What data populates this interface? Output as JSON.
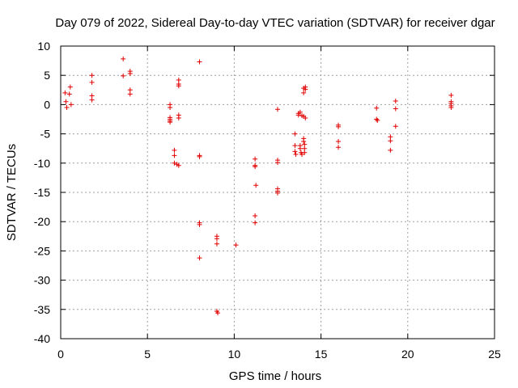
{
  "chart_data": {
    "type": "scatter",
    "title": "Day 079 of 2022, Sidereal Day-to-day VTEC variation (SDTVAR) for receiver dgar",
    "xlabel": "GPS time / hours",
    "ylabel": "SDTVAR / TECUs",
    "xlim": [
      0,
      25
    ],
    "ylim": [
      -40,
      10
    ],
    "xticks": [
      0,
      5,
      10,
      15,
      20,
      25
    ],
    "yticks": [
      10,
      5,
      0,
      -5,
      -10,
      -15,
      -20,
      -25,
      -30,
      -35,
      -40
    ],
    "grid": true,
    "marker": "plus",
    "series": [
      {
        "name": "SDTVAR",
        "color": "#e00000",
        "points": [
          [
            0.25,
            2.0
          ],
          [
            0.3,
            0.5
          ],
          [
            0.35,
            -0.5
          ],
          [
            0.5,
            1.8
          ],
          [
            0.55,
            3.0
          ],
          [
            0.6,
            0.0
          ],
          [
            1.8,
            5.0
          ],
          [
            1.8,
            3.8
          ],
          [
            1.8,
            1.5
          ],
          [
            1.8,
            0.8
          ],
          [
            3.6,
            7.8
          ],
          [
            3.6,
            4.9
          ],
          [
            4.0,
            5.7
          ],
          [
            4.0,
            5.3
          ],
          [
            4.0,
            2.5
          ],
          [
            4.0,
            1.8
          ],
          [
            6.3,
            0.0
          ],
          [
            6.3,
            -0.5
          ],
          [
            6.3,
            -2.2
          ],
          [
            6.3,
            -2.5
          ],
          [
            6.3,
            -2.8
          ],
          [
            6.3,
            -3.0
          ],
          [
            6.55,
            -7.8
          ],
          [
            6.55,
            -8.7
          ],
          [
            6.55,
            -10.0
          ],
          [
            6.7,
            -10.2
          ],
          [
            6.8,
            -10.4
          ],
          [
            6.8,
            4.2
          ],
          [
            6.8,
            3.5
          ],
          [
            6.8,
            3.2
          ],
          [
            6.8,
            -1.8
          ],
          [
            6.8,
            -2.3
          ],
          [
            8.0,
            7.3
          ],
          [
            8.0,
            -8.7
          ],
          [
            8.0,
            -8.9
          ],
          [
            8.0,
            -20.2
          ],
          [
            8.0,
            -20.5
          ],
          [
            8.0,
            -26.2
          ],
          [
            9.0,
            -22.5
          ],
          [
            9.0,
            -22.9
          ],
          [
            9.0,
            -23.8
          ],
          [
            9.0,
            -35.3
          ],
          [
            9.05,
            -35.6
          ],
          [
            10.1,
            -24.0
          ],
          [
            11.2,
            -9.3
          ],
          [
            11.2,
            -10.4
          ],
          [
            11.2,
            -10.6
          ],
          [
            11.25,
            -13.8
          ],
          [
            11.2,
            -19.0
          ],
          [
            11.2,
            -20.2
          ],
          [
            12.5,
            -0.8
          ],
          [
            12.5,
            -9.5
          ],
          [
            12.5,
            -9.9
          ],
          [
            12.5,
            -14.4
          ],
          [
            12.5,
            -14.8
          ],
          [
            12.5,
            -15.1
          ],
          [
            13.5,
            -5.0
          ],
          [
            13.5,
            -7.0
          ],
          [
            13.5,
            -8.0
          ],
          [
            13.55,
            -8.5
          ],
          [
            13.7,
            -1.5
          ],
          [
            13.7,
            -1.8
          ],
          [
            13.8,
            -1.3
          ],
          [
            13.8,
            -7.0
          ],
          [
            13.8,
            -7.5
          ],
          [
            13.85,
            -8.2
          ],
          [
            13.9,
            -8.5
          ],
          [
            13.9,
            -1.9
          ],
          [
            14.0,
            2.8
          ],
          [
            14.0,
            2.0
          ],
          [
            14.0,
            -2.0
          ],
          [
            14.0,
            -5.8
          ],
          [
            14.0,
            -6.3
          ],
          [
            14.05,
            -6.8
          ],
          [
            14.05,
            -7.5
          ],
          [
            14.05,
            -8.2
          ],
          [
            14.1,
            2.6
          ],
          [
            14.1,
            3.0
          ],
          [
            14.1,
            -2.3
          ],
          [
            16.0,
            -3.5
          ],
          [
            16.0,
            -3.8
          ],
          [
            16.0,
            -6.3
          ],
          [
            16.0,
            -7.3
          ],
          [
            18.2,
            -0.6
          ],
          [
            18.2,
            -2.5
          ],
          [
            18.25,
            -2.7
          ],
          [
            19.0,
            -5.5
          ],
          [
            19.0,
            -6.2
          ],
          [
            19.0,
            -7.8
          ],
          [
            19.3,
            0.6
          ],
          [
            19.3,
            -0.7
          ],
          [
            19.3,
            -3.7
          ],
          [
            22.5,
            1.6
          ],
          [
            22.5,
            0.5
          ],
          [
            22.5,
            0.2
          ],
          [
            22.5,
            -0.2
          ],
          [
            22.5,
            -0.5
          ]
        ]
      }
    ]
  }
}
